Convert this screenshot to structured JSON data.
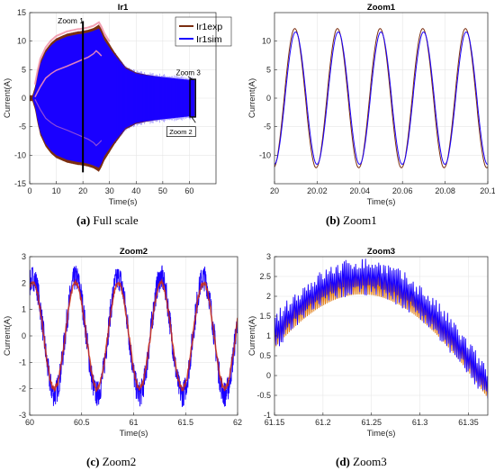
{
  "chart_data": [
    {
      "id": "ir1",
      "type": "area",
      "title": "Ir1",
      "xlabel": "Time(s)",
      "ylabel": "Current(A)",
      "xlim": [
        0,
        70
      ],
      "ylim": [
        -15,
        15
      ],
      "xticks": [
        0,
        10,
        20,
        30,
        40,
        50,
        60
      ],
      "yticks": [
        -15,
        -10,
        -5,
        0,
        5,
        10,
        15
      ],
      "legend": {
        "placement": "top-right",
        "entries": [
          "Ir1exp",
          "Ir1sim"
        ]
      },
      "series": [
        {
          "name": "Ir1exp",
          "color": "#7b2e10",
          "kind": "envelope",
          "t": [
            0,
            1,
            2,
            3,
            4,
            6,
            8,
            10,
            14,
            18,
            20,
            22,
            24,
            26,
            27,
            28,
            32,
            36,
            40,
            44,
            48,
            52,
            56,
            60,
            62
          ],
          "upper": [
            0,
            0,
            1.5,
            4,
            6,
            8,
            9.2,
            10,
            10.8,
            11.2,
            11.3,
            11.5,
            11.8,
            12.4,
            11.6,
            10.5,
            7.5,
            5,
            4,
            3.6,
            3.3,
            3.0,
            2.8,
            2.6,
            2.6
          ]
        },
        {
          "name": "Ir1sim",
          "color": "#1a00ff",
          "kind": "envelope",
          "t": [
            0,
            1,
            2,
            3,
            4,
            6,
            8,
            10,
            14,
            18,
            20,
            22,
            24,
            26,
            27,
            28,
            32,
            36,
            40,
            44,
            48,
            52,
            56,
            60,
            62
          ],
          "upper": [
            0,
            0,
            1.5,
            4,
            6,
            8,
            9.2,
            10,
            10.8,
            11.2,
            11.3,
            11.5,
            11.8,
            12.2,
            11.4,
            10.2,
            7.5,
            5.2,
            4.3,
            4,
            3.8,
            3.6,
            3.4,
            3.2,
            3.2
          ]
        }
      ],
      "annotations": [
        "Zoom 1",
        "Zoom 3",
        "Zoom 2"
      ],
      "markers": [
        {
          "label": "Zoom 1",
          "x": 20
        }
      ]
    },
    {
      "id": "zoom1",
      "type": "line",
      "title": "Zoom1",
      "xlabel": "Time(s)",
      "ylabel": "Current(A)",
      "xlim": [
        20,
        20.1
      ],
      "ylim": [
        -15,
        15
      ],
      "xticks": [
        20,
        20.02,
        20.04,
        20.06,
        20.08,
        20.1
      ],
      "xticklabels": [
        "20",
        "20.02",
        "20.04",
        "20.06",
        "20.08",
        "20.1"
      ],
      "yticks": [
        -10,
        -5,
        0,
        5,
        10
      ],
      "series": [
        {
          "name": "Ir1exp",
          "color": "#7b2e10",
          "amplitude": 12.2,
          "freq": 50,
          "phase": 0
        },
        {
          "name": "Ir1sim",
          "color": "#1a00ff",
          "amplitude": 11.6,
          "freq": 50,
          "phase": -0.12
        }
      ]
    },
    {
      "id": "zoom2",
      "type": "line",
      "title": "Zoom2",
      "xlabel": "Time(s)",
      "ylabel": "Current(A)",
      "xlim": [
        60,
        62
      ],
      "ylim": [
        -3,
        3
      ],
      "xticks": [
        60,
        60.5,
        61,
        61.5,
        62
      ],
      "xticklabels": [
        "60",
        "60.5",
        "61",
        "61.5",
        "62"
      ],
      "yticks": [
        -3,
        -2,
        -1,
        0,
        1,
        2,
        3
      ],
      "series": [
        {
          "name": "Ir1exp",
          "color": "#cc2e10",
          "amplitude": 2.0,
          "period": 0.41,
          "phase": -0.5
        },
        {
          "name": "Ir1sim",
          "color": "#1a00ff",
          "amplitude": 2.2,
          "period": 0.41,
          "phase": -0.5,
          "noise": 0.5
        }
      ]
    },
    {
      "id": "zoom3",
      "type": "line",
      "title": "Zoom3",
      "xlabel": "Time(s)",
      "ylabel": "Current(A)",
      "xlim": [
        61.15,
        61.37
      ],
      "ylim": [
        -1,
        3
      ],
      "xticks": [
        61.15,
        61.2,
        61.25,
        61.3,
        61.35
      ],
      "xticklabels": [
        "61.15",
        "61.2",
        "61.25",
        "61.3",
        "61.35"
      ],
      "yticks": [
        -1,
        -0.5,
        0,
        0.5,
        1,
        1.5,
        2,
        2.5,
        3
      ],
      "yticklabels": [
        "-1",
        "-0.5",
        "0",
        "0.5",
        "1",
        "1.5",
        "2",
        "2.5",
        "3"
      ],
      "series": [
        {
          "name": "Ir1exp",
          "color": "#e07a10",
          "peak": 2.3,
          "peak_x": 61.24
        },
        {
          "name": "Ir1sim",
          "color": "#1a00ff",
          "peak": 2.5,
          "peak_x": 61.24,
          "noise": 0.4
        }
      ]
    }
  ],
  "captions": [
    {
      "tag": "(a)",
      "text": "Full scale"
    },
    {
      "tag": "(b)",
      "text": "Zoom1"
    },
    {
      "tag": "(c)",
      "text": "Zoom2"
    },
    {
      "tag": "(d)",
      "text": "Zoom3"
    }
  ]
}
